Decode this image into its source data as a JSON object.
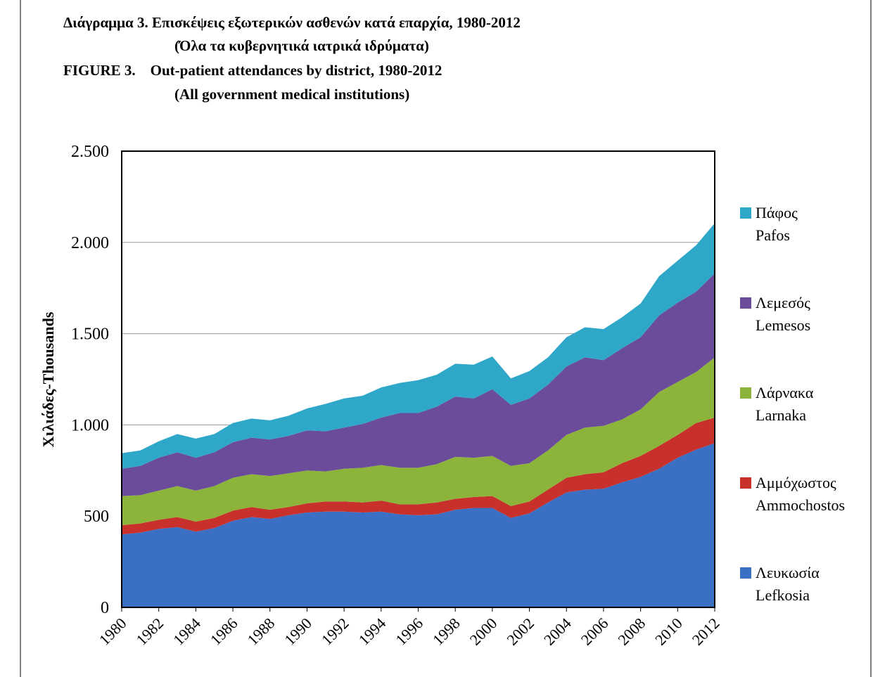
{
  "chart_data": {
    "type": "stacked_area",
    "title": [
      "Διάγραμμα 3. Επισκέψεις εξωτερικών ασθενών κατά επαρχία, 1980-2012",
      "(Όλα τα κυβερνητικά ιατρικά ιδρύματα)",
      "FIGURE 3.    Out-patient attendances by district, 1980-2012",
      "(All government medical institutions)"
    ],
    "y_label": "Χιλιάδες-Thousands",
    "x": [
      1980,
      1981,
      1982,
      1983,
      1984,
      1985,
      1986,
      1987,
      1988,
      1989,
      1990,
      1991,
      1992,
      1993,
      1994,
      1995,
      1996,
      1997,
      1998,
      1999,
      2000,
      2001,
      2002,
      2003,
      2004,
      2005,
      2006,
      2007,
      2008,
      2009,
      2010,
      2011,
      2012
    ],
    "xlim": [
      1980,
      2012
    ],
    "xticks": [
      1980,
      1982,
      1984,
      1986,
      1988,
      1990,
      1992,
      1994,
      1996,
      1998,
      2000,
      2002,
      2004,
      2006,
      2008,
      2010,
      2012
    ],
    "ylim": [
      0,
      2500
    ],
    "yticks": [
      0,
      500,
      {
        "value": 1000,
        "label": "1.000"
      },
      {
        "value": 1500,
        "label": "1.500"
      },
      {
        "value": 2000,
        "label": "2.000"
      },
      {
        "value": 2500,
        "label": "2.500"
      }
    ],
    "grid": true,
    "legend": "right",
    "series": [
      {
        "name": "Λευκωσία\nLefkosia",
        "color": "#3a6fc4",
        "values": [
          400,
          410,
          430,
          440,
          415,
          435,
          475,
          495,
          485,
          505,
          520,
          525,
          525,
          520,
          525,
          510,
          505,
          510,
          535,
          545,
          545,
          490,
          515,
          575,
          630,
          645,
          650,
          685,
          715,
          760,
          820,
          865,
          900
        ]
      },
      {
        "name": "Αμμόχωστος\nAmmochostos",
        "color": "#c8302b",
        "values": [
          50,
          50,
          50,
          55,
          55,
          55,
          55,
          55,
          50,
          45,
          50,
          55,
          55,
          55,
          60,
          55,
          60,
          65,
          60,
          60,
          65,
          65,
          65,
          70,
          80,
          85,
          90,
          105,
          115,
          125,
          125,
          145,
          140
        ]
      },
      {
        "name": "Λάρνακα\nLarnaka",
        "color": "#8cb43a",
        "values": [
          160,
          155,
          160,
          170,
          170,
          175,
          180,
          180,
          185,
          185,
          180,
          165,
          180,
          190,
          195,
          200,
          200,
          210,
          230,
          215,
          220,
          220,
          210,
          215,
          235,
          255,
          255,
          240,
          255,
          295,
          290,
          280,
          330
        ]
      },
      {
        "name": "Λεμεσός\nLemesos",
        "color": "#6b4c9a",
        "values": [
          150,
          160,
          180,
          185,
          180,
          185,
          195,
          200,
          200,
          205,
          220,
          220,
          225,
          240,
          260,
          300,
          300,
          315,
          330,
          325,
          365,
          335,
          355,
          360,
          375,
          385,
          360,
          390,
          395,
          420,
          435,
          440,
          460
        ]
      },
      {
        "name": "Πάφος\nPafos",
        "color": "#2fa7c8",
        "values": [
          85,
          85,
          90,
          100,
          105,
          100,
          105,
          105,
          105,
          110,
          120,
          150,
          160,
          155,
          165,
          165,
          180,
          175,
          180,
          185,
          180,
          145,
          150,
          150,
          160,
          165,
          170,
          170,
          185,
          215,
          230,
          255,
          275
        ]
      }
    ]
  }
}
